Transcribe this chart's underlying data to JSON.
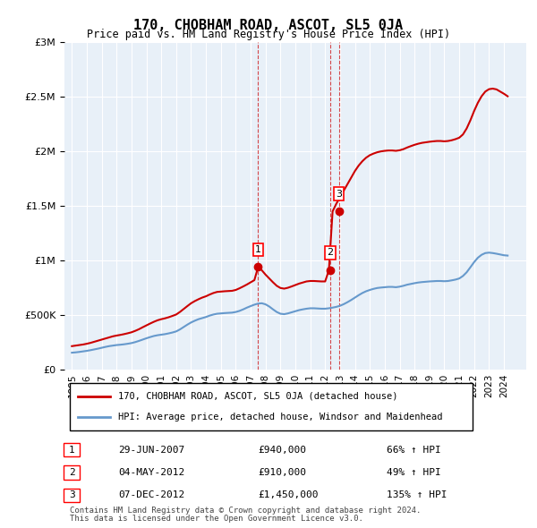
{
  "title": "170, CHOBHAM ROAD, ASCOT, SL5 0JA",
  "subtitle": "Price paid vs. HM Land Registry's House Price Index (HPI)",
  "xlabel": "",
  "ylabel": "",
  "ylim": [
    0,
    3000000
  ],
  "yticks": [
    0,
    500000,
    1000000,
    1500000,
    2000000,
    2500000,
    3000000
  ],
  "ytick_labels": [
    "£0",
    "£500K",
    "£1M",
    "£1.5M",
    "£2M",
    "£2.5M",
    "£3M"
  ],
  "xlim_start": 1994.5,
  "xlim_end": 2025.5,
  "background_color": "#ffffff",
  "plot_bg_color": "#e8f0f8",
  "grid_color": "#ffffff",
  "red_color": "#cc0000",
  "blue_color": "#6699cc",
  "dashed_color": "#cc0000",
  "transactions": [
    {
      "num": 1,
      "date": "29-JUN-2007",
      "year": 2007.5,
      "price": 940000,
      "pct": "66%",
      "dir": "↑"
    },
    {
      "num": 2,
      "date": "04-MAY-2012",
      "year": 2012.33,
      "price": 910000,
      "pct": "49%",
      "dir": "↑"
    },
    {
      "num": 3,
      "date": "07-DEC-2012",
      "year": 2012.92,
      "price": 1450000,
      "pct": "135%",
      "dir": "↑"
    }
  ],
  "legend_label_red": "170, CHOBHAM ROAD, ASCOT, SL5 0JA (detached house)",
  "legend_label_blue": "HPI: Average price, detached house, Windsor and Maidenhead",
  "footer1": "Contains HM Land Registry data © Crown copyright and database right 2024.",
  "footer2": "This data is licensed under the Open Government Licence v3.0.",
  "hpi_years": [
    1995,
    1995.25,
    1995.5,
    1995.75,
    1996,
    1996.25,
    1996.5,
    1996.75,
    1997,
    1997.25,
    1997.5,
    1997.75,
    1998,
    1998.25,
    1998.5,
    1998.75,
    1999,
    1999.25,
    1999.5,
    1999.75,
    2000,
    2000.25,
    2000.5,
    2000.75,
    2001,
    2001.25,
    2001.5,
    2001.75,
    2002,
    2002.25,
    2002.5,
    2002.75,
    2003,
    2003.25,
    2003.5,
    2003.75,
    2004,
    2004.25,
    2004.5,
    2004.75,
    2005,
    2005.25,
    2005.5,
    2005.75,
    2006,
    2006.25,
    2006.5,
    2006.75,
    2007,
    2007.25,
    2007.5,
    2007.75,
    2008,
    2008.25,
    2008.5,
    2008.75,
    2009,
    2009.25,
    2009.5,
    2009.75,
    2010,
    2010.25,
    2010.5,
    2010.75,
    2011,
    2011.25,
    2011.5,
    2011.75,
    2012,
    2012.25,
    2012.5,
    2012.75,
    2013,
    2013.25,
    2013.5,
    2013.75,
    2014,
    2014.25,
    2014.5,
    2014.75,
    2015,
    2015.25,
    2015.5,
    2015.75,
    2016,
    2016.25,
    2016.5,
    2016.75,
    2017,
    2017.25,
    2017.5,
    2017.75,
    2018,
    2018.25,
    2018.5,
    2018.75,
    2019,
    2019.25,
    2019.5,
    2019.75,
    2020,
    2020.25,
    2020.5,
    2020.75,
    2021,
    2021.25,
    2021.5,
    2021.75,
    2022,
    2022.25,
    2022.5,
    2022.75,
    2023,
    2023.25,
    2023.5,
    2023.75,
    2024,
    2024.25
  ],
  "hpi_values": [
    155000,
    158000,
    162000,
    167000,
    172000,
    178000,
    185000,
    192000,
    200000,
    208000,
    215000,
    220000,
    225000,
    228000,
    232000,
    237000,
    243000,
    252000,
    263000,
    275000,
    287000,
    298000,
    308000,
    315000,
    320000,
    325000,
    332000,
    340000,
    350000,
    368000,
    390000,
    412000,
    432000,
    448000,
    462000,
    472000,
    482000,
    495000,
    505000,
    512000,
    515000,
    518000,
    520000,
    522000,
    528000,
    538000,
    552000,
    568000,
    582000,
    595000,
    605000,
    608000,
    598000,
    578000,
    552000,
    528000,
    512000,
    508000,
    515000,
    525000,
    535000,
    545000,
    552000,
    558000,
    562000,
    562000,
    560000,
    558000,
    558000,
    562000,
    568000,
    575000,
    585000,
    600000,
    618000,
    638000,
    660000,
    682000,
    702000,
    718000,
    730000,
    740000,
    748000,
    752000,
    755000,
    758000,
    758000,
    755000,
    760000,
    768000,
    778000,
    785000,
    792000,
    798000,
    802000,
    805000,
    808000,
    810000,
    812000,
    812000,
    810000,
    812000,
    818000,
    825000,
    835000,
    858000,
    892000,
    938000,
    985000,
    1025000,
    1052000,
    1068000,
    1072000,
    1068000,
    1062000,
    1055000,
    1048000,
    1045000
  ],
  "red_years": [
    1995,
    1995.25,
    1995.5,
    1995.75,
    1996,
    1996.25,
    1996.5,
    1996.75,
    1997,
    1997.25,
    1997.5,
    1997.75,
    1998,
    1998.25,
    1998.5,
    1998.75,
    1999,
    1999.25,
    1999.5,
    1999.75,
    2000,
    2000.25,
    2000.5,
    2000.75,
    2001,
    2001.25,
    2001.5,
    2001.75,
    2002,
    2002.25,
    2002.5,
    2002.75,
    2003,
    2003.25,
    2003.5,
    2003.75,
    2004,
    2004.25,
    2004.5,
    2004.75,
    2005,
    2005.25,
    2005.5,
    2005.75,
    2006,
    2006.25,
    2006.5,
    2006.75,
    2007,
    2007.25,
    2007.5,
    2007.75,
    2008,
    2008.25,
    2008.5,
    2008.75,
    2009,
    2009.25,
    2009.5,
    2009.75,
    2010,
    2010.25,
    2010.5,
    2010.75,
    2011,
    2011.25,
    2011.5,
    2011.75,
    2012,
    2012.25,
    2012.5,
    2012.75,
    2013,
    2013.25,
    2013.5,
    2013.75,
    2014,
    2014.25,
    2014.5,
    2014.75,
    2015,
    2015.25,
    2015.5,
    2015.75,
    2016,
    2016.25,
    2016.5,
    2016.75,
    2017,
    2017.25,
    2017.5,
    2017.75,
    2018,
    2018.25,
    2018.5,
    2018.75,
    2019,
    2019.25,
    2019.5,
    2019.75,
    2020,
    2020.25,
    2020.5,
    2020.75,
    2021,
    2021.25,
    2021.5,
    2021.75,
    2022,
    2022.25,
    2022.5,
    2022.75,
    2023,
    2023.25,
    2023.5,
    2023.75,
    2024,
    2024.25
  ],
  "red_values": [
    215000,
    220000,
    225000,
    230000,
    237000,
    245000,
    255000,
    265000,
    275000,
    285000,
    295000,
    305000,
    312000,
    318000,
    325000,
    333000,
    342000,
    355000,
    370000,
    388000,
    405000,
    422000,
    438000,
    452000,
    462000,
    470000,
    480000,
    492000,
    505000,
    528000,
    555000,
    582000,
    608000,
    628000,
    645000,
    660000,
    672000,
    688000,
    702000,
    712000,
    715000,
    718000,
    720000,
    722000,
    730000,
    745000,
    762000,
    780000,
    800000,
    820000,
    940000,
    910000,
    870000,
    835000,
    800000,
    768000,
    748000,
    742000,
    750000,
    762000,
    775000,
    788000,
    798000,
    808000,
    812000,
    812000,
    810000,
    808000,
    808000,
    910000,
    1450000,
    1520000,
    1580000,
    1640000,
    1700000,
    1760000,
    1820000,
    1870000,
    1910000,
    1942000,
    1965000,
    1980000,
    1992000,
    2000000,
    2005000,
    2008000,
    2008000,
    2005000,
    2010000,
    2020000,
    2035000,
    2048000,
    2060000,
    2070000,
    2078000,
    2083000,
    2088000,
    2092000,
    2095000,
    2095000,
    2092000,
    2095000,
    2102000,
    2112000,
    2125000,
    2155000,
    2210000,
    2285000,
    2370000,
    2445000,
    2505000,
    2548000,
    2570000,
    2575000,
    2568000,
    2548000,
    2528000,
    2505000
  ]
}
